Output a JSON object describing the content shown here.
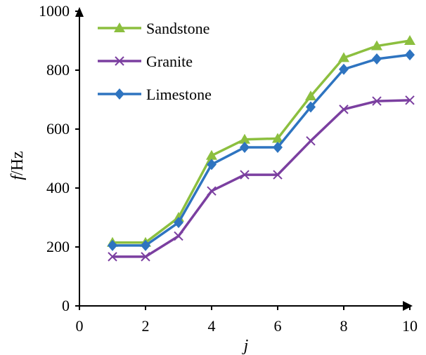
{
  "chart_data": {
    "type": "line",
    "x": [
      1,
      2,
      3,
      4,
      5,
      6,
      7,
      8,
      9,
      10
    ],
    "series": [
      {
        "name": "Sandstone",
        "color": "#8cbf3f",
        "marker": "triangle",
        "values": [
          215,
          215,
          300,
          510,
          565,
          568,
          712,
          842,
          882,
          900
        ]
      },
      {
        "name": "Granite",
        "color": "#7b3fa0",
        "marker": "cross",
        "values": [
          167,
          167,
          237,
          390,
          445,
          445,
          560,
          667,
          695,
          698
        ]
      },
      {
        "name": "Limestone",
        "color": "#2e74c0",
        "marker": "diamond",
        "values": [
          205,
          205,
          283,
          480,
          538,
          538,
          675,
          803,
          838,
          852
        ]
      }
    ],
    "xlabel": "j",
    "ylabel_italic": "f",
    "ylabel_rest": "/Hz",
    "xlim": [
      0,
      10
    ],
    "ylim": [
      0,
      1000
    ],
    "xticks": [
      "0",
      "2",
      "4",
      "6",
      "8",
      "10"
    ],
    "yticks": [
      "0",
      "200",
      "400",
      "600",
      "800",
      "1000"
    ],
    "grid": false,
    "legend_position": "top-left"
  }
}
